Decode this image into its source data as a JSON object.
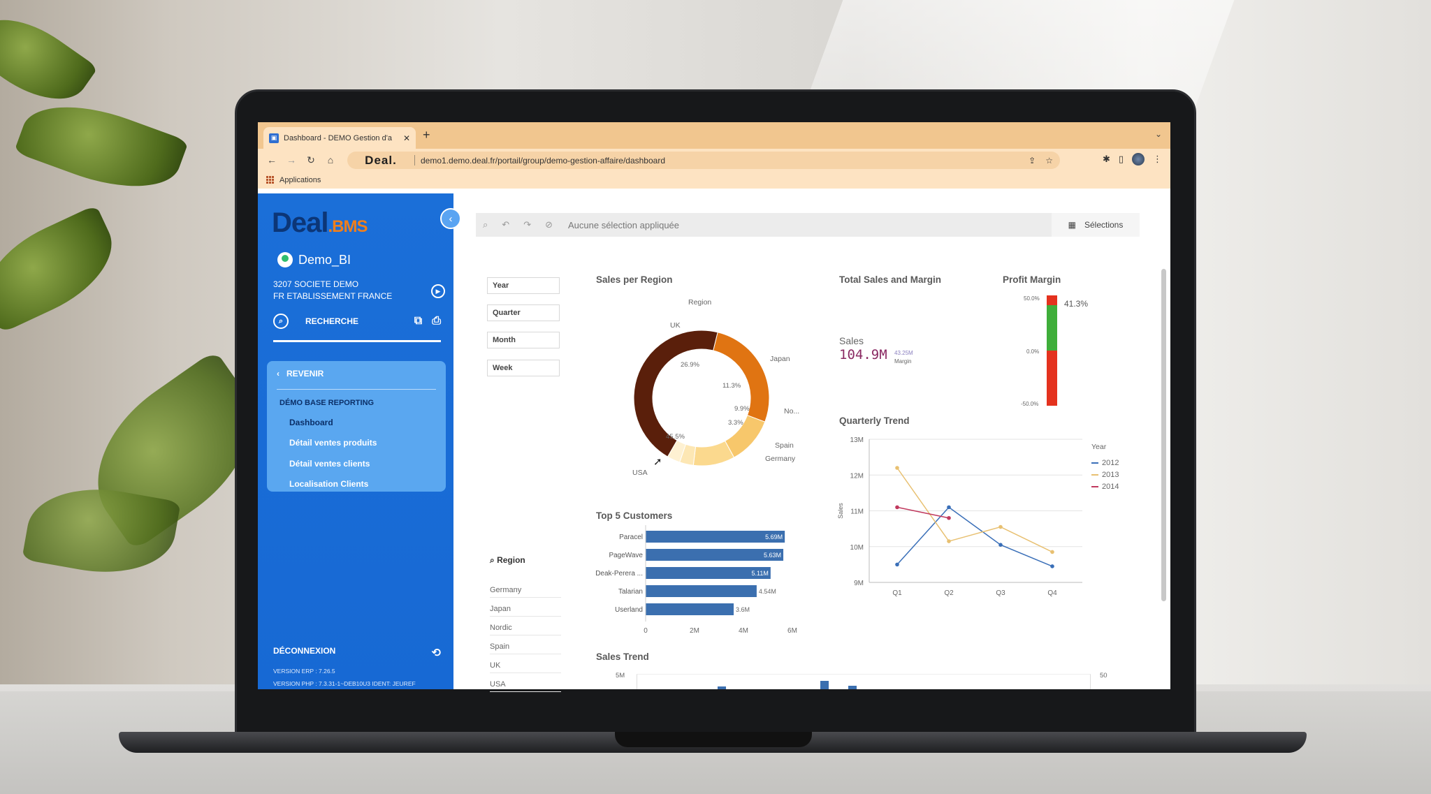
{
  "browser": {
    "tab_title": "Dashboard - DEMO Gestion d'a",
    "url": "demo1.demo.deal.fr/portail/group/demo-gestion-affaire/dashboard",
    "omnibox_logo": "Deal.",
    "bookmark_label": "Applications"
  },
  "sidebar": {
    "logo_main": "Deal",
    "logo_suffix": ".BMS",
    "user": "Demo_BI",
    "company_line1": "3207 SOCIETE DEMO",
    "company_line2": "FR ETABLISSEMENT FRANCE",
    "search_label": "RECHERCHE",
    "back_label": "REVENIR",
    "menu_heading": "DÉMO BASE REPORTING",
    "menu_items": [
      "Dashboard",
      "Détail ventes produits",
      "Détail ventes clients",
      "Localisation Clients"
    ],
    "logout_label": "DÉCONNEXION",
    "version_erp": "VERSION ERP : 7.26.5",
    "version_php": "VERSION PHP : 7.3.31-1~DEB10U3 IDENT: JEUREF"
  },
  "selection_bar": {
    "placeholder": "Aucune sélection appliquée",
    "button": "Sélections"
  },
  "filters": [
    "Year",
    "Quarter",
    "Month",
    "Week"
  ],
  "region_filter": {
    "title": "Region",
    "items": [
      "Germany",
      "Japan",
      "Nordic",
      "Spain",
      "UK",
      "USA"
    ]
  },
  "charts": {
    "sales_per_region": {
      "title": "Sales per Region",
      "dimension": "Region",
      "type": "pie",
      "slices": [
        {
          "label": "UK",
          "value": 26.9,
          "pct": "26.9%",
          "color": "#e07412"
        },
        {
          "label": "Japan",
          "value": 11.3,
          "pct": "11.3%",
          "color": "#f7c76b"
        },
        {
          "label": "No...",
          "value": 9.9,
          "pct": "9.9%",
          "color": "#fbd98e"
        },
        {
          "label": "Spain",
          "value": 3.3,
          "pct": "3.3%",
          "color": "#fde7b4"
        },
        {
          "label": "Germany",
          "value": 3.1,
          "pct": "",
          "color": "#fef1d2"
        },
        {
          "label": "USA",
          "value": 45.5,
          "pct": "45.5%",
          "color": "#5a1f0b"
        }
      ]
    },
    "total_sales": {
      "title": "Total Sales and Margin",
      "label": "Sales",
      "value": "104.9M",
      "sub_value": "43.25M",
      "sub_label": "Margin"
    },
    "profit_margin": {
      "title": "Profit Margin",
      "value": "41.3%",
      "ticks": [
        "50.0%",
        "0.0%",
        "-50.0%"
      ],
      "level": 41.3,
      "range": [
        -50,
        50
      ],
      "colors": {
        "positive": "#3fae3a",
        "negative": "#e4321e"
      }
    },
    "quarterly_trend": {
      "title": "Quarterly Trend",
      "type": "line",
      "ylabel": "Sales",
      "ylim": [
        9,
        13
      ],
      "yticks": [
        "13M",
        "12M",
        "11M",
        "10M",
        "9M"
      ],
      "categories": [
        "Q1",
        "Q2",
        "Q3",
        "Q4"
      ],
      "legend_title": "Year",
      "series": [
        {
          "name": "2012",
          "values": [
            9.5,
            11.1,
            10.05,
            9.45
          ],
          "color": "#3a6fb8"
        },
        {
          "name": "2013",
          "values": [
            12.2,
            10.15,
            10.55,
            9.85
          ],
          "color": "#e8c071"
        },
        {
          "name": "2014",
          "values": [
            11.1,
            10.8,
            null,
            null
          ],
          "color": "#c0395e"
        }
      ]
    },
    "top_customers": {
      "title": "Top 5 Customers",
      "type": "bar",
      "categories": [
        "Paracel",
        "PageWave",
        "Deak-Perera ...",
        "Talarian",
        "Userland"
      ],
      "values": [
        5.69,
        5.63,
        5.11,
        4.54,
        3.6
      ],
      "value_labels": [
        "5.69M",
        "5.63M",
        "5.11M",
        "4.54M",
        "3.6M"
      ],
      "xticks": [
        "0",
        "2M",
        "4M",
        "6M"
      ],
      "xlim": [
        0,
        6
      ],
      "color": "#3b6faf"
    },
    "sales_trend": {
      "title": "Sales Trend",
      "y_left": "5M",
      "y_right": "50"
    }
  }
}
